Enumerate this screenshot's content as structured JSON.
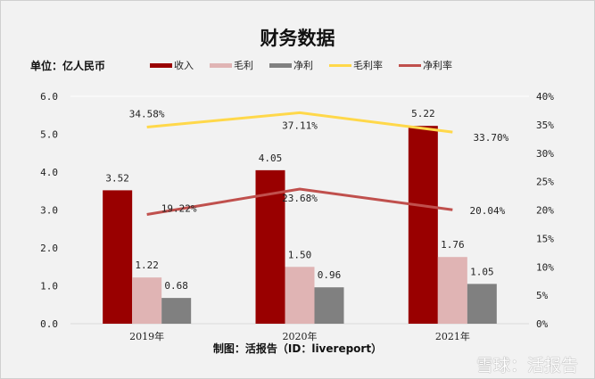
{
  "title": "财务数据",
  "unit": "单位：亿人民币",
  "credit": "制图：活报告（ID：livereport）",
  "watermark": "雪球：活报告",
  "colors": {
    "revenue": "#990000",
    "gross": "#e0b4b4",
    "net": "#808080",
    "gross_margin": "#ffd84a",
    "net_margin": "#c0504d"
  },
  "chart_data": {
    "type": "bar+line",
    "categories": [
      "2019年",
      "2020年",
      "2021年"
    ],
    "series": [
      {
        "name": "收入",
        "type": "bar",
        "axis": "left",
        "values": [
          3.52,
          4.05,
          5.22
        ],
        "labels": [
          "3.52",
          "4.05",
          "5.22"
        ]
      },
      {
        "name": "毛利",
        "type": "bar",
        "axis": "left",
        "values": [
          1.22,
          1.5,
          1.76
        ],
        "labels": [
          "1.22",
          "1.50",
          "1.76"
        ]
      },
      {
        "name": "净利",
        "type": "bar",
        "axis": "left",
        "values": [
          0.68,
          0.96,
          1.05
        ],
        "labels": [
          "0.68",
          "0.96",
          "1.05"
        ]
      },
      {
        "name": "毛利率",
        "type": "line",
        "axis": "right",
        "values": [
          34.58,
          37.11,
          33.7
        ],
        "labels": [
          "34.58%",
          "37.11%",
          "33.70%"
        ]
      },
      {
        "name": "净利率",
        "type": "line",
        "axis": "right",
        "values": [
          19.22,
          23.68,
          20.04
        ],
        "labels": [
          "19.22%",
          "23.68%",
          "20.04%"
        ]
      }
    ],
    "left_axis": {
      "ylim": [
        0,
        6
      ],
      "ticks": [
        "0.0",
        "1.0",
        "2.0",
        "3.0",
        "4.0",
        "5.0",
        "6.0"
      ]
    },
    "right_axis": {
      "ylim": [
        0,
        40
      ],
      "ticks": [
        "0%",
        "5%",
        "10%",
        "15%",
        "20%",
        "25%",
        "30%",
        "35%",
        "40%"
      ]
    },
    "grid": false,
    "legend": "top"
  }
}
